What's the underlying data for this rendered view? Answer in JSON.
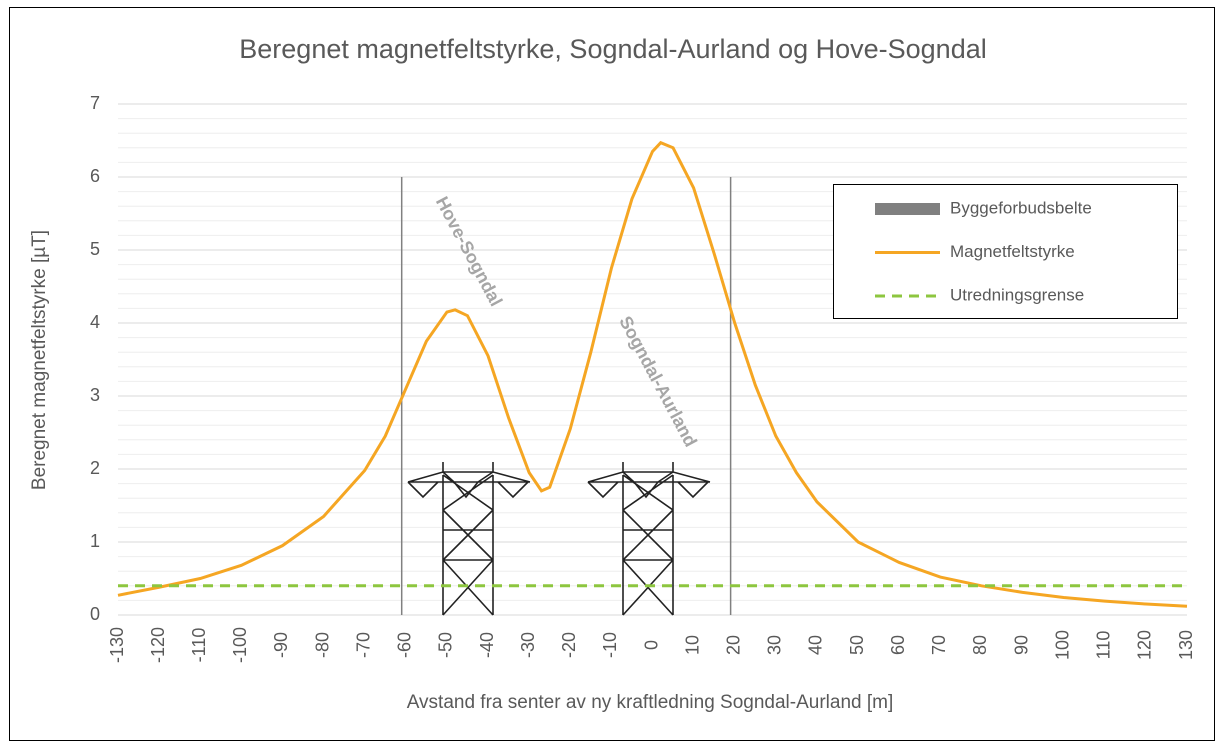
{
  "chart_data": {
    "type": "line",
    "title": "Beregnet magnetfeltstyrke, Sogndal-Aurland og Hove-Sogndal",
    "x_label": "Avstand fra senter av ny kraftledning Sogndal-Aurland [m]",
    "y_label": "Beregnet magnetfeltstyrke [µT]",
    "xlim": [
      -130,
      130
    ],
    "ylim": [
      0,
      7
    ],
    "xticks": [
      -130,
      -120,
      -110,
      -100,
      -90,
      -80,
      -70,
      -60,
      -50,
      -40,
      -30,
      -20,
      -10,
      0,
      10,
      20,
      30,
      40,
      50,
      60,
      70,
      80,
      90,
      100,
      110,
      120,
      130
    ],
    "yticks": [
      0,
      1,
      2,
      3,
      4,
      5,
      6,
      7
    ],
    "grid": true,
    "legend": "right",
    "series": [
      {
        "name": "Byggeforbudsbelte",
        "color": "#808080",
        "style": "vbar",
        "x": [
          -61,
          19
        ],
        "values": [
          6,
          6
        ]
      },
      {
        "name": "Magnetfeltstyrke",
        "color": "#f5a623",
        "style": "line",
        "x": [
          -130,
          -120,
          -110,
          -100,
          -90,
          -80,
          -70,
          -65,
          -60,
          -55,
          -50,
          -48,
          -45,
          -40,
          -35,
          -30,
          -27,
          -25,
          -20,
          -15,
          -10,
          -5,
          0,
          2,
          5,
          10,
          15,
          20,
          25,
          30,
          35,
          40,
          50,
          60,
          70,
          80,
          90,
          100,
          110,
          120,
          130
        ],
        "values": [
          0.27,
          0.38,
          0.5,
          0.68,
          0.95,
          1.35,
          1.98,
          2.45,
          3.1,
          3.75,
          4.15,
          4.18,
          4.1,
          3.55,
          2.7,
          1.95,
          1.7,
          1.75,
          2.55,
          3.6,
          4.75,
          5.7,
          6.35,
          6.47,
          6.4,
          5.85,
          4.95,
          4.0,
          3.15,
          2.45,
          1.95,
          1.55,
          1.0,
          0.72,
          0.52,
          0.4,
          0.31,
          0.24,
          0.19,
          0.15,
          0.12
        ]
      },
      {
        "name": "Utredningsgrense",
        "color": "#8dc63f",
        "style": "dashed",
        "x": [
          -130,
          130
        ],
        "values": [
          0.4,
          0.4
        ]
      }
    ],
    "annotations": [
      "Hove-Sogndal",
      "Sogndal-Aurland"
    ]
  }
}
